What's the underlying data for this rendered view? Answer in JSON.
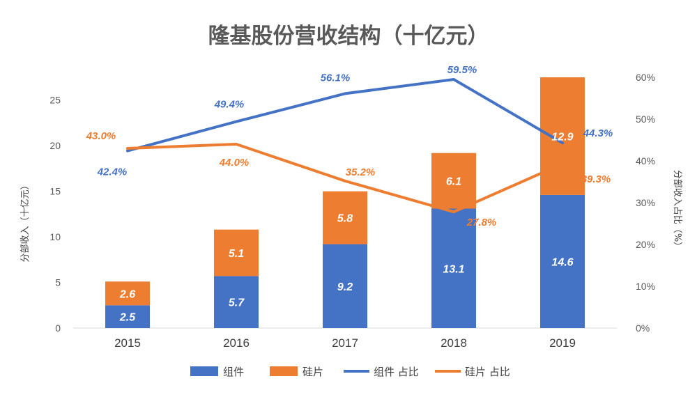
{
  "chart_data": {
    "type": "bar",
    "title": "隆基股份营收结构（十亿元）",
    "categories": [
      "2015",
      "2016",
      "2017",
      "2018",
      "2019"
    ],
    "ylabel": "分部收入（十亿元）",
    "y2label": "分部收入占比（%）",
    "ylim": [
      0,
      27.5
    ],
    "y2lim": [
      0,
      0.6
    ],
    "yticks": [
      0,
      5,
      10,
      15,
      20,
      25
    ],
    "y2ticks": [
      "0%",
      "10%",
      "20%",
      "30%",
      "40%",
      "50%",
      "60%"
    ],
    "series": [
      {
        "name": "组件",
        "kind": "bar",
        "color": "#4472C4",
        "values": [
          2.5,
          5.7,
          9.2,
          13.1,
          14.6
        ],
        "labels": [
          "2.5",
          "5.7",
          "9.2",
          "13.1",
          "14.6"
        ]
      },
      {
        "name": "硅片",
        "kind": "bar",
        "color": "#ED7D31",
        "values": [
          2.6,
          5.1,
          5.8,
          6.1,
          12.9
        ],
        "labels": [
          "2.6",
          "5.1",
          "5.8",
          "6.1",
          "12.9"
        ]
      },
      {
        "name": "组件 占比",
        "kind": "line",
        "axis": "right",
        "color": "#4472C4",
        "values": [
          0.424,
          0.494,
          0.561,
          0.595,
          0.443
        ],
        "labels": [
          "42.4%",
          "49.4%",
          "56.1%",
          "59.5%",
          "44.3%"
        ]
      },
      {
        "name": "硅片 占比",
        "kind": "line",
        "axis": "right",
        "color": "#ED7D31",
        "values": [
          0.43,
          0.44,
          0.352,
          0.278,
          0.393
        ],
        "labels": [
          "43.0%",
          "44.0%",
          "35.2%",
          "27.8%",
          "39.3%"
        ]
      }
    ]
  }
}
